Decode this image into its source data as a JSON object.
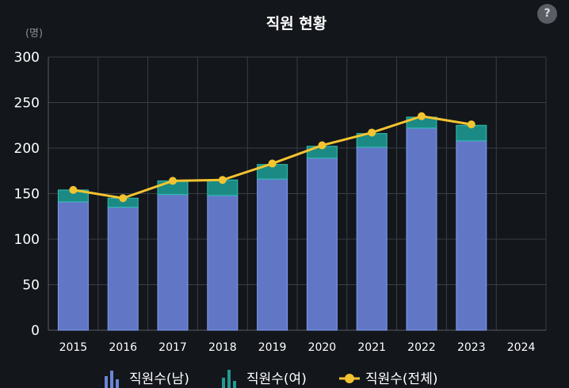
{
  "chart_data": {
    "type": "bar",
    "title": "직원 현황",
    "unit_label": "(명)",
    "categories": [
      "2015",
      "2016",
      "2017",
      "2018",
      "2019",
      "2020",
      "2021",
      "2022",
      "2023",
      "2024"
    ],
    "series": [
      {
        "name": "직원수(남)",
        "type": "bar",
        "stack": true,
        "color": "#6b86d6",
        "values": [
          141,
          135,
          149,
          148,
          166,
          189,
          201,
          222,
          208,
          null
        ]
      },
      {
        "name": "직원수(여)",
        "type": "bar",
        "stack": true,
        "color": "#1f9b90",
        "values": [
          13,
          10,
          15,
          17,
          16,
          13,
          15,
          12,
          17,
          null
        ]
      },
      {
        "name": "직원수(전체)",
        "type": "line",
        "color": "#f4c430",
        "values": [
          154,
          145,
          164,
          165,
          183,
          203,
          217,
          235,
          226,
          null
        ]
      }
    ],
    "ylim": [
      0,
      300
    ],
    "yticks": [
      0,
      50,
      100,
      150,
      200,
      250,
      300
    ],
    "grid": true,
    "legend_position": "bottom"
  },
  "help_label": "?"
}
